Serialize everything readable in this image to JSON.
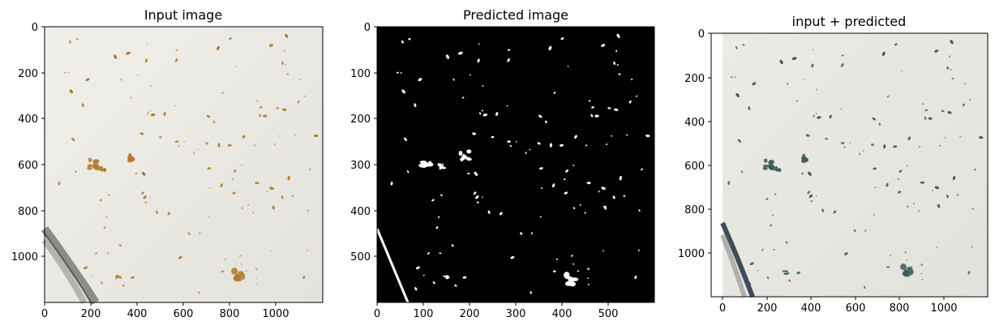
{
  "figure": {
    "panels": [
      {
        "title": "Input image",
        "xticks": [
          "0",
          "200",
          "400",
          "600",
          "800",
          "1000"
        ],
        "yticks": [
          "0",
          "200",
          "400",
          "600",
          "800",
          "1000"
        ]
      },
      {
        "title": "Predicted image",
        "xticks": [
          "0",
          "100",
          "200",
          "300",
          "400",
          "500"
        ],
        "yticks": [
          "0",
          "100",
          "200",
          "300",
          "400",
          "500"
        ]
      },
      {
        "title": "input + predicted",
        "xticks": [
          "0",
          "200",
          "400",
          "600",
          "800",
          "1000"
        ],
        "yticks": [
          "0",
          "200",
          "400",
          "600",
          "800",
          "1000"
        ]
      }
    ]
  },
  "chart_data": [
    {
      "type": "heatmap",
      "title": "Input image",
      "xlim": [
        0,
        1200
      ],
      "ylim": [
        1200,
        0
      ],
      "xticks": [
        0,
        200,
        400,
        600,
        800,
        1000
      ],
      "yticks": [
        0,
        200,
        400,
        600,
        800,
        1000
      ],
      "background_color": "#ece9e2",
      "mark_color": "#b07a2a",
      "clusters": [
        {
          "x": 210,
          "y": 600,
          "w": 60,
          "h": 50
        },
        {
          "x": 250,
          "y": 620,
          "w": 30,
          "h": 25
        },
        {
          "x": 370,
          "y": 570,
          "w": 45,
          "h": 40
        },
        {
          "x": 840,
          "y": 1080,
          "w": 55,
          "h": 60
        },
        {
          "x": 320,
          "y": 1090,
          "w": 30,
          "h": 20
        }
      ]
    },
    {
      "type": "heatmap",
      "title": "Predicted image",
      "xlim": [
        0,
        600
      ],
      "ylim": [
        600,
        0
      ],
      "xticks": [
        0,
        100,
        200,
        300,
        400,
        500
      ],
      "yticks": [
        0,
        100,
        200,
        300,
        400,
        500
      ],
      "background_color": "#000000",
      "mark_color": "#ffffff",
      "clusters": [
        {
          "x": 105,
          "y": 300,
          "w": 30,
          "h": 22
        },
        {
          "x": 140,
          "y": 305,
          "w": 14,
          "h": 14
        },
        {
          "x": 190,
          "y": 280,
          "w": 24,
          "h": 22
        },
        {
          "x": 420,
          "y": 550,
          "w": 28,
          "h": 28
        },
        {
          "x": 150,
          "y": 545,
          "w": 14,
          "h": 8
        }
      ]
    },
    {
      "type": "heatmap",
      "title": "input + predicted",
      "xlim": [
        -50,
        1200
      ],
      "ylim": [
        1200,
        0
      ],
      "xticks": [
        0,
        200,
        400,
        600,
        800,
        1000
      ],
      "yticks": [
        0,
        200,
        400,
        600,
        800,
        1000
      ],
      "background_color": "#e6e5df",
      "mark_color": "#3d5a5a",
      "clusters": [
        {
          "x": 210,
          "y": 600,
          "w": 60,
          "h": 50
        },
        {
          "x": 250,
          "y": 620,
          "w": 30,
          "h": 25
        },
        {
          "x": 370,
          "y": 570,
          "w": 45,
          "h": 40
        },
        {
          "x": 840,
          "y": 1080,
          "w": 55,
          "h": 60
        },
        {
          "x": 290,
          "y": 1090,
          "w": 30,
          "h": 20
        }
      ]
    }
  ]
}
